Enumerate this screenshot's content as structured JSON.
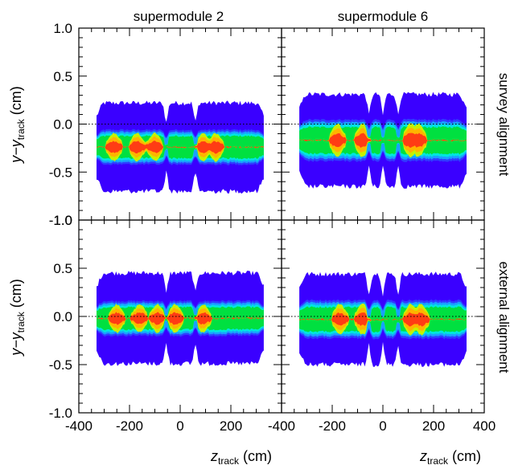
{
  "chart_data": {
    "type": "heatmap",
    "columns": [
      "supermodule 2",
      "supermodule 6"
    ],
    "rows": [
      "survey alignment",
      "external alignment"
    ],
    "xaxis": {
      "label_main": "z",
      "label_sub": "track",
      "label_unit": " (cm)",
      "range": [
        -400,
        400
      ],
      "ticks": [
        "-400",
        "-200",
        "0",
        "200",
        "400"
      ],
      "tick_values": [
        -400,
        -200,
        0,
        200,
        400
      ]
    },
    "yaxis": {
      "label_main": "y−y",
      "label_sub": "track",
      "label_unit": " (cm)",
      "range": [
        -1.0,
        1.0
      ],
      "ticks": [
        "-1.0",
        "-0.5",
        "0.0",
        "0.5",
        "1.0"
      ],
      "tick_values": [
        -1.0,
        -0.5,
        0.0,
        0.5,
        1.0
      ]
    },
    "reference_line_y": 0.0,
    "panels": [
      {
        "column": "supermodule 2",
        "row": "survey alignment",
        "z_min": -330,
        "z_max": 330,
        "center_y": -0.24,
        "half_width": 0.2,
        "envelope": 0.46,
        "gaps_z": [
          -55,
          60
        ],
        "hotspots_z": [
          -260,
          -170,
          -100,
          90,
          140
        ]
      },
      {
        "column": "supermodule 6",
        "row": "survey alignment",
        "z_min": -330,
        "z_max": 330,
        "center_y": -0.17,
        "half_width": 0.24,
        "envelope": 0.48,
        "gaps_z": [
          -55,
          0,
          60
        ],
        "hotspots_z": [
          -180,
          -80,
          110,
          140
        ]
      },
      {
        "column": "supermodule 2",
        "row": "external alignment",
        "z_min": -330,
        "z_max": 330,
        "center_y": -0.02,
        "half_width": 0.2,
        "envelope": 0.47,
        "gaps_z": [
          -55,
          60
        ],
        "hotspots_z": [
          -250,
          -160,
          -90,
          -20,
          90
        ]
      },
      {
        "column": "supermodule 6",
        "row": "external alignment",
        "z_min": -330,
        "z_max": 330,
        "center_y": -0.03,
        "half_width": 0.22,
        "envelope": 0.47,
        "gaps_z": [
          -55,
          0,
          60
        ],
        "hotspots_z": [
          -170,
          -80,
          110,
          150
        ]
      }
    ],
    "colorscale": [
      "#3a00ff",
      "#2f3cff",
      "#1aa0ff",
      "#00e5e0",
      "#00e040",
      "#c8f000",
      "#ffb400",
      "#ff3c14"
    ]
  }
}
